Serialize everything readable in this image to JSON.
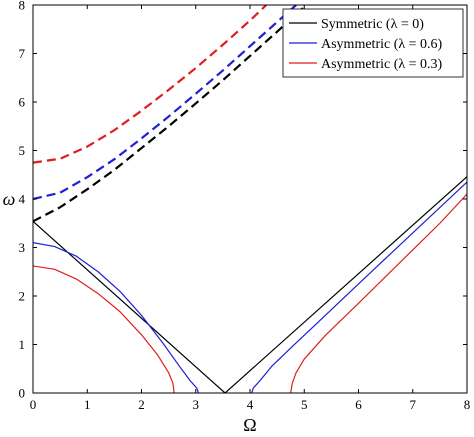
{
  "chart_data": {
    "type": "line",
    "title": "",
    "xlabel": "Ω",
    "ylabel": "ω",
    "xlim": [
      0,
      8
    ],
    "ylim": [
      0,
      8
    ],
    "xticks": [
      "0",
      "1",
      "2",
      "3",
      "4",
      "5",
      "6",
      "7",
      "8"
    ],
    "yticks": [
      "0",
      "1",
      "2",
      "3",
      "4",
      "5",
      "6",
      "7",
      "8"
    ],
    "grid": false,
    "legend_position": "top-right",
    "series": [
      {
        "name": "Symmetric (λ = 0)",
        "color": "#000000",
        "style": "solid",
        "segments": [
          [
            [
              0,
              3.54
            ],
            [
              3.54,
              0
            ],
            [
              8,
              4.46
            ]
          ]
        ]
      },
      {
        "name": "Asymmetric (λ = 0.6)",
        "color": "#1f1fd6",
        "style": "solid",
        "segments": [
          [
            [
              0,
              3.1
            ],
            [
              0.4,
              3.02
            ],
            [
              0.8,
              2.82
            ],
            [
              1.2,
              2.5
            ],
            [
              1.6,
              2.1
            ],
            [
              2.0,
              1.6
            ],
            [
              2.4,
              1.02
            ],
            [
              2.7,
              0.55
            ],
            [
              2.9,
              0.25
            ],
            [
              3.02,
              0.1
            ],
            [
              3.05,
              0
            ]
          ],
          [
            [
              4.03,
              0
            ],
            [
              4.06,
              0.1
            ],
            [
              4.18,
              0.25
            ],
            [
              4.4,
              0.55
            ],
            [
              4.8,
              0.98
            ],
            [
              5.2,
              1.4
            ],
            [
              6.0,
              2.25
            ],
            [
              7.0,
              3.3
            ],
            [
              8,
              4.35
            ]
          ]
        ]
      },
      {
        "name": "Asymmetric (λ = 0.3)",
        "color": "#e01e1e",
        "style": "solid",
        "segments": [
          [
            [
              0,
              2.62
            ],
            [
              0.4,
              2.55
            ],
            [
              0.8,
              2.35
            ],
            [
              1.2,
              2.05
            ],
            [
              1.6,
              1.68
            ],
            [
              2.0,
              1.2
            ],
            [
              2.3,
              0.78
            ],
            [
              2.5,
              0.42
            ],
            [
              2.58,
              0.2
            ],
            [
              2.6,
              0
            ]
          ],
          [
            [
              4.75,
              0
            ],
            [
              4.78,
              0.2
            ],
            [
              4.85,
              0.42
            ],
            [
              5.0,
              0.7
            ],
            [
              5.4,
              1.2
            ],
            [
              6.0,
              1.85
            ],
            [
              6.5,
              2.4
            ],
            [
              7.0,
              2.95
            ],
            [
              7.5,
              3.5
            ],
            [
              8,
              4.1
            ]
          ]
        ]
      },
      {
        "color": "#000000",
        "style": "dashed",
        "segments": [
          [
            [
              0,
              3.54
            ],
            [
              0.5,
              3.83
            ],
            [
              1.0,
              4.2
            ],
            [
              1.5,
              4.6
            ],
            [
              2.0,
              5.05
            ],
            [
              2.5,
              5.5
            ],
            [
              3.0,
              5.97
            ],
            [
              3.5,
              6.45
            ],
            [
              4.0,
              6.95
            ],
            [
              4.5,
              7.45
            ],
            [
              5.0,
              7.96
            ],
            [
              5.05,
              8.0
            ]
          ]
        ]
      },
      {
        "color": "#1f1fd6",
        "style": "dashed",
        "segments": [
          [
            [
              0,
              4.0
            ],
            [
              0.5,
              4.13
            ],
            [
              1.0,
              4.45
            ],
            [
              1.5,
              4.82
            ],
            [
              2.0,
              5.25
            ],
            [
              2.5,
              5.7
            ],
            [
              3.0,
              6.17
            ],
            [
              3.5,
              6.65
            ],
            [
              4.0,
              7.15
            ],
            [
              4.5,
              7.65
            ],
            [
              4.85,
              8.0
            ]
          ]
        ]
      },
      {
        "color": "#e01e1e",
        "style": "dashed",
        "segments": [
          [
            [
              0,
              4.75
            ],
            [
              0.5,
              4.83
            ],
            [
              1.0,
              5.08
            ],
            [
              1.5,
              5.42
            ],
            [
              2.0,
              5.82
            ],
            [
              2.5,
              6.25
            ],
            [
              3.0,
              6.7
            ],
            [
              3.5,
              7.18
            ],
            [
              4.0,
              7.68
            ],
            [
              4.3,
              8.0
            ]
          ]
        ]
      }
    ]
  }
}
